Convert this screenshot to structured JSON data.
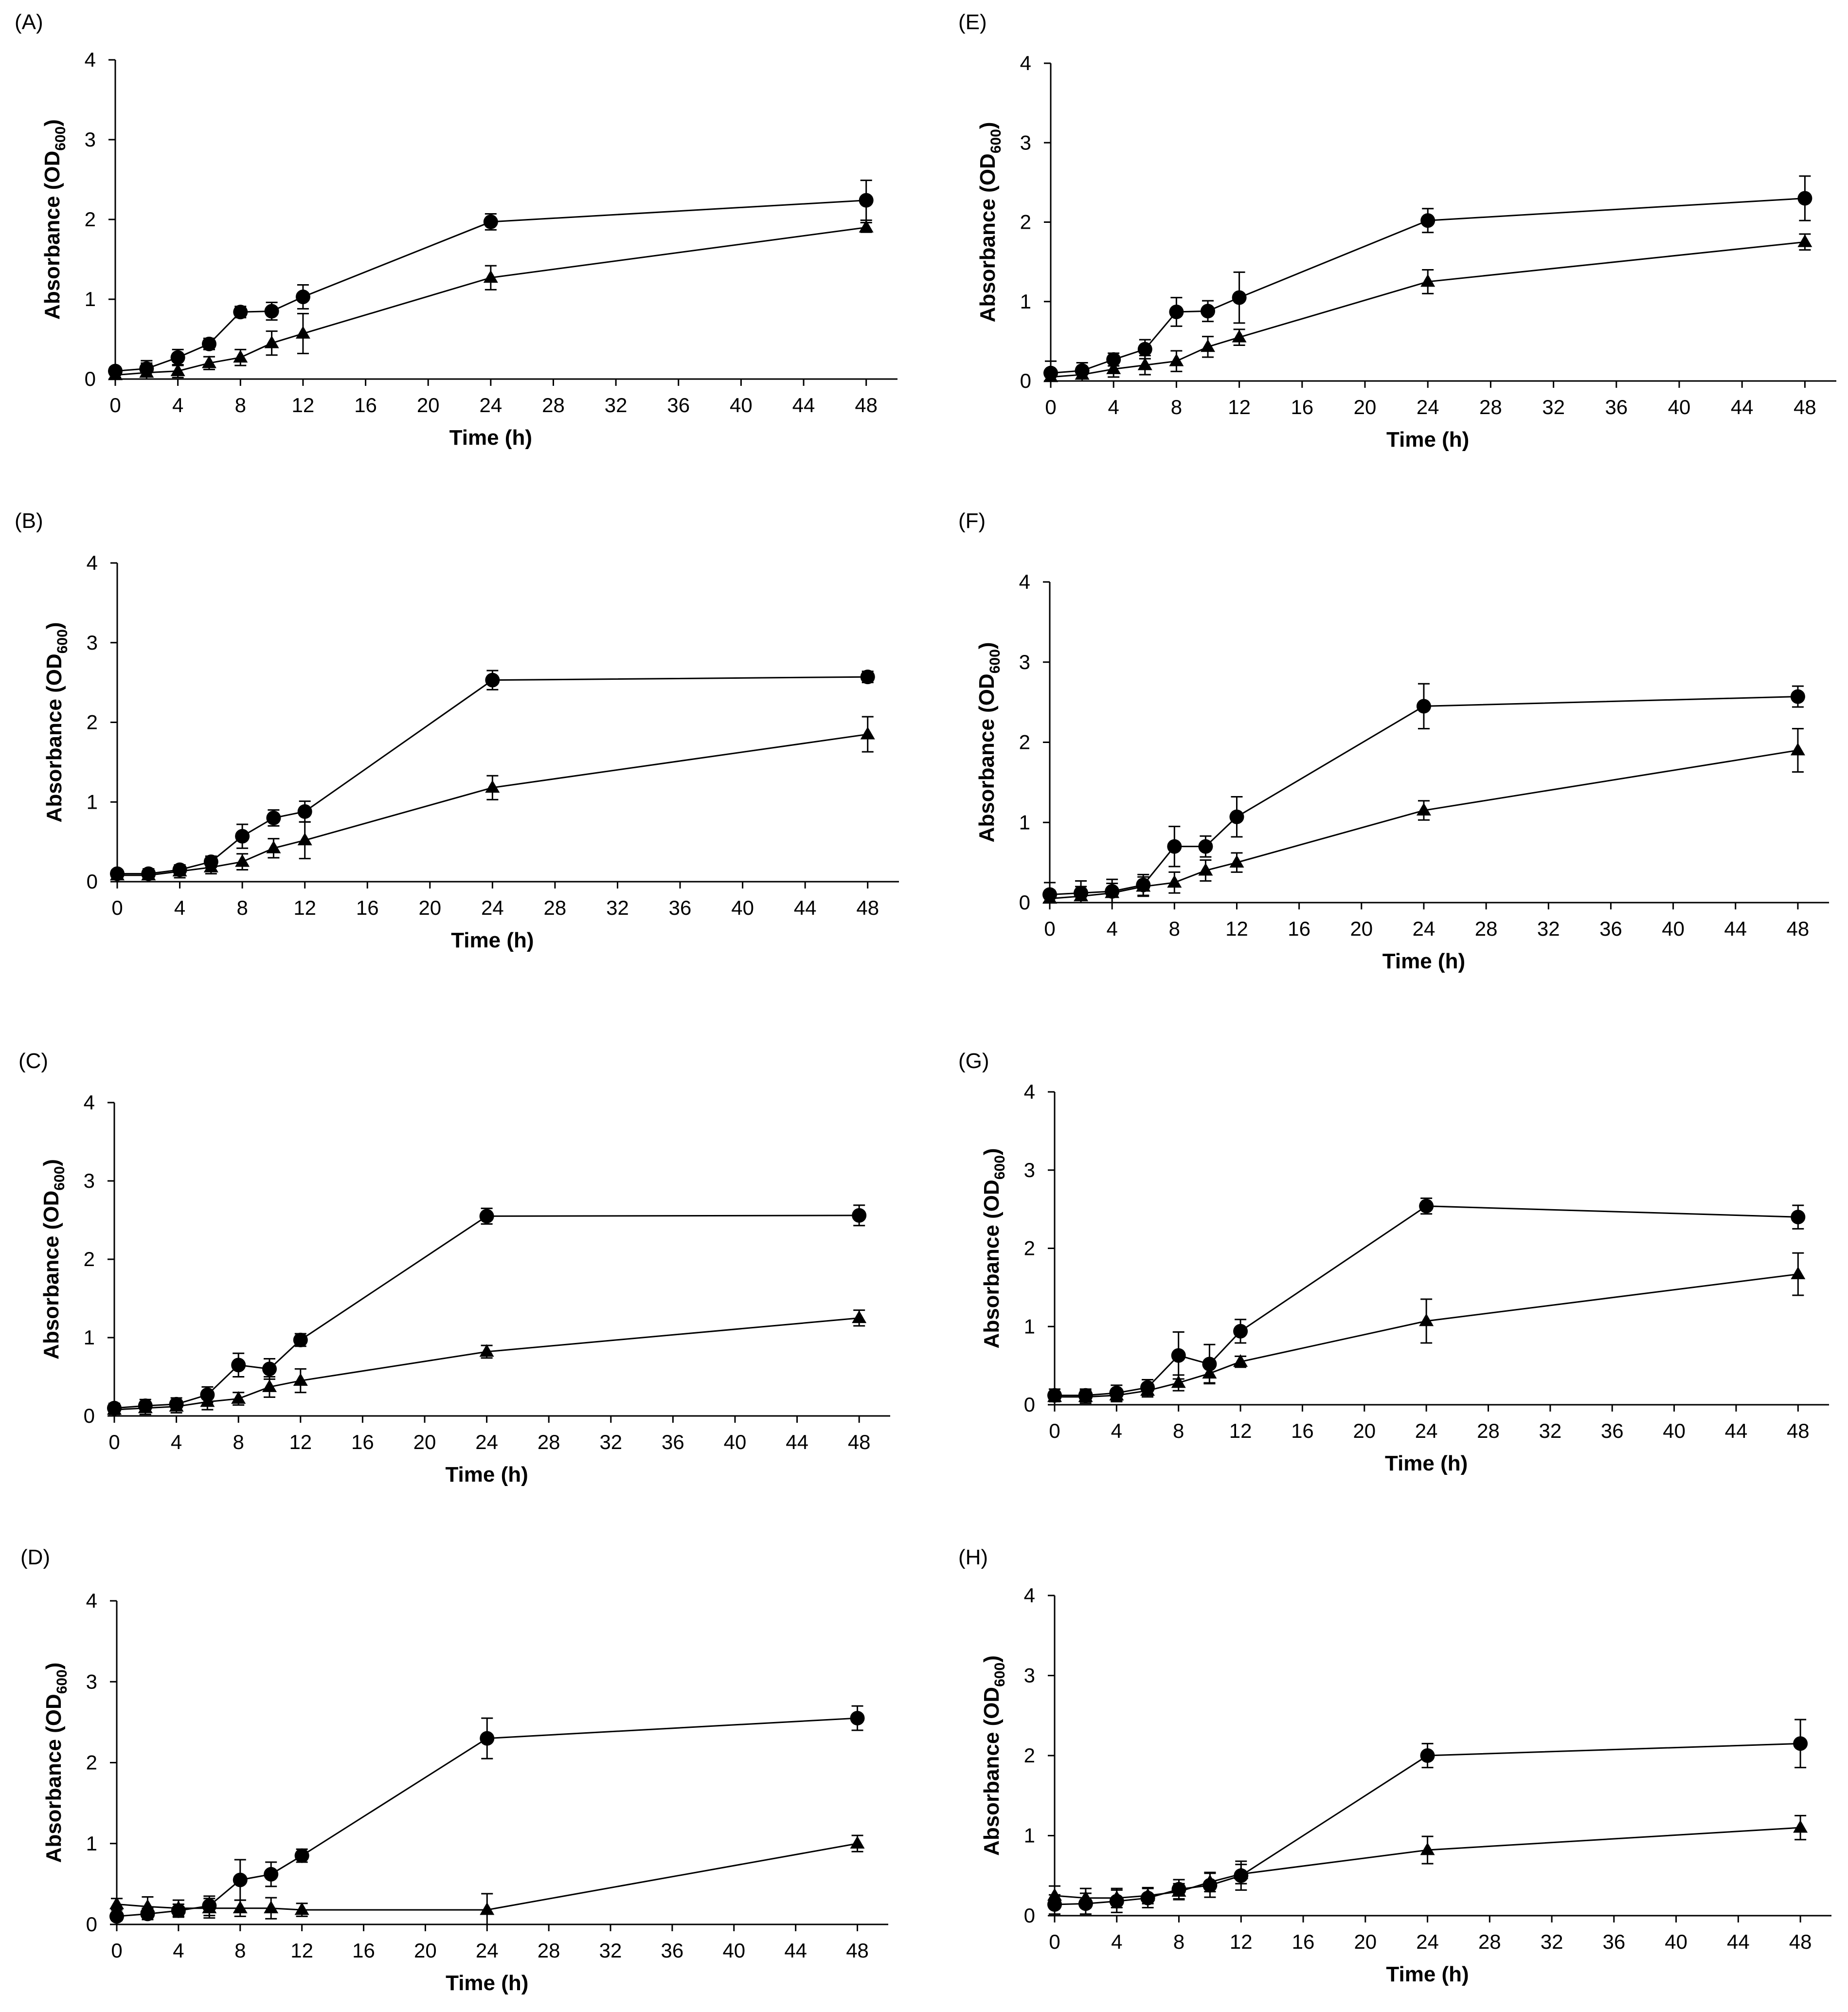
{
  "chart_data": [
    {
      "type": "line",
      "panel": "(A)",
      "x": [
        0,
        2,
        4,
        6,
        8,
        10,
        12,
        24,
        48
      ],
      "series": [
        {
          "marker": "circle",
          "values": [
            0.1,
            0.13,
            0.27,
            0.44,
            0.84,
            0.85,
            1.03,
            1.97,
            2.24
          ],
          "errors": [
            0.05,
            0.1,
            0.1,
            0.07,
            0.07,
            0.11,
            0.15,
            0.1,
            0.25
          ]
        },
        {
          "marker": "triangle",
          "values": [
            0.05,
            0.08,
            0.1,
            0.2,
            0.27,
            0.45,
            0.57,
            1.27,
            1.9
          ],
          "errors": [
            0.03,
            0.12,
            0.08,
            0.08,
            0.1,
            0.15,
            0.25,
            0.15,
            0.06
          ]
        }
      ],
      "xlabel": "Time (h)",
      "ylabel": "Absorbance (OD",
      "ylabel_sub": "600",
      "ylabel_end": ")",
      "xticks": [
        0,
        4,
        8,
        12,
        16,
        20,
        24,
        28,
        32,
        36,
        40,
        44,
        48
      ],
      "yticks": [
        0,
        1,
        2,
        3,
        4
      ],
      "xlim": [
        0,
        50
      ],
      "ylim": [
        0,
        4
      ],
      "grid": false
    },
    {
      "type": "line",
      "panel": "(B)",
      "x": [
        0,
        2,
        4,
        6,
        8,
        10,
        12,
        24,
        48
      ],
      "series": [
        {
          "marker": "circle",
          "values": [
            0.1,
            0.1,
            0.15,
            0.25,
            0.57,
            0.8,
            0.88,
            2.53,
            2.57
          ],
          "errors": [
            0.05,
            0.06,
            0.06,
            0.07,
            0.15,
            0.1,
            0.13,
            0.12,
            0.07
          ]
        },
        {
          "marker": "triangle",
          "values": [
            0.08,
            0.08,
            0.13,
            0.18,
            0.25,
            0.42,
            0.52,
            1.18,
            1.85
          ],
          "errors": [
            0.05,
            0.08,
            0.08,
            0.08,
            0.1,
            0.12,
            0.23,
            0.15,
            0.22
          ]
        }
      ],
      "xlabel": "Time (h)",
      "ylabel": "Absorbance (OD",
      "ylabel_sub": "600",
      "ylabel_end": ")",
      "xticks": [
        0,
        4,
        8,
        12,
        16,
        20,
        24,
        28,
        32,
        36,
        40,
        44,
        48
      ],
      "yticks": [
        0,
        1,
        2,
        3,
        4
      ],
      "xlim": [
        0,
        50
      ],
      "ylim": [
        0,
        4
      ],
      "grid": false
    },
    {
      "type": "line",
      "panel": "(C)",
      "x": [
        0,
        2,
        4,
        6,
        8,
        10,
        12,
        24,
        48
      ],
      "series": [
        {
          "marker": "circle",
          "values": [
            0.1,
            0.13,
            0.15,
            0.27,
            0.65,
            0.6,
            0.97,
            2.55,
            2.56
          ],
          "errors": [
            0.06,
            0.08,
            0.08,
            0.1,
            0.15,
            0.13,
            0.08,
            0.1,
            0.13
          ]
        },
        {
          "marker": "triangle",
          "values": [
            0.08,
            0.1,
            0.12,
            0.18,
            0.22,
            0.37,
            0.45,
            0.82,
            1.25
          ],
          "errors": [
            0.06,
            0.08,
            0.08,
            0.1,
            0.08,
            0.13,
            0.15,
            0.08,
            0.1
          ]
        }
      ],
      "xlabel": "Time (h)",
      "ylabel": "Absorbance (OD",
      "ylabel_sub": "600",
      "ylabel_end": ")",
      "xticks": [
        0,
        4,
        8,
        12,
        16,
        20,
        24,
        28,
        32,
        36,
        40,
        44,
        48
      ],
      "yticks": [
        0,
        1,
        2,
        3,
        4
      ],
      "xlim": [
        0,
        50
      ],
      "ylim": [
        0,
        4
      ],
      "grid": false
    },
    {
      "type": "line",
      "panel": "(D)",
      "x": [
        0,
        2,
        4,
        6,
        8,
        10,
        12,
        24,
        48
      ],
      "series": [
        {
          "marker": "circle",
          "values": [
            0.1,
            0.13,
            0.17,
            0.23,
            0.55,
            0.62,
            0.85,
            2.3,
            2.55
          ],
          "errors": [
            0.05,
            0.07,
            0.08,
            0.12,
            0.25,
            0.15,
            0.08,
            0.25,
            0.15
          ]
        },
        {
          "marker": "triangle",
          "values": [
            0.25,
            0.22,
            0.2,
            0.2,
            0.2,
            0.2,
            0.18,
            0.18,
            1.0
          ],
          "errors": [
            0.07,
            0.12,
            0.1,
            0.12,
            0.1,
            0.13,
            0.08,
            0.2,
            0.1
          ]
        }
      ],
      "xlabel": "Time (h)",
      "ylabel": "Absorbance (OD",
      "ylabel_sub": "600",
      "ylabel_end": ")",
      "xticks": [
        0,
        4,
        8,
        12,
        16,
        20,
        24,
        28,
        32,
        36,
        40,
        44,
        48
      ],
      "yticks": [
        0,
        1,
        2,
        3,
        4
      ],
      "xlim": [
        0,
        50
      ],
      "ylim": [
        0,
        4
      ],
      "grid": false
    },
    {
      "type": "line",
      "panel": "(E)",
      "x": [
        0,
        2,
        4,
        6,
        8,
        10,
        12,
        24,
        48
      ],
      "series": [
        {
          "marker": "circle",
          "values": [
            0.1,
            0.13,
            0.27,
            0.4,
            0.87,
            0.88,
            1.05,
            2.02,
            2.3
          ],
          "errors": [
            0.15,
            0.1,
            0.08,
            0.12,
            0.18,
            0.13,
            0.32,
            0.15,
            0.28
          ]
        },
        {
          "marker": "triangle",
          "values": [
            0.05,
            0.08,
            0.15,
            0.2,
            0.25,
            0.43,
            0.55,
            1.25,
            1.75
          ],
          "errors": [
            0.05,
            0.08,
            0.1,
            0.12,
            0.13,
            0.13,
            0.1,
            0.15,
            0.1
          ]
        }
      ],
      "xlabel": "Time (h)",
      "ylabel": "Absorbance (OD",
      "ylabel_sub": "600",
      "ylabel_end": ")",
      "xticks": [
        0,
        4,
        8,
        12,
        16,
        20,
        24,
        28,
        32,
        36,
        40,
        44,
        48
      ],
      "yticks": [
        0,
        1,
        2,
        3,
        4
      ],
      "xlim": [
        0,
        50
      ],
      "ylim": [
        0,
        4
      ],
      "grid": false
    },
    {
      "type": "line",
      "panel": "(F)",
      "x": [
        0,
        2,
        4,
        6,
        8,
        10,
        12,
        24,
        48
      ],
      "series": [
        {
          "marker": "circle",
          "values": [
            0.1,
            0.12,
            0.14,
            0.22,
            0.7,
            0.7,
            1.07,
            2.45,
            2.57
          ],
          "errors": [
            0.15,
            0.15,
            0.15,
            0.13,
            0.25,
            0.13,
            0.25,
            0.28,
            0.13
          ]
        },
        {
          "marker": "triangle",
          "values": [
            0.05,
            0.08,
            0.12,
            0.2,
            0.25,
            0.4,
            0.5,
            1.15,
            1.9
          ],
          "errors": [
            0.1,
            0.12,
            0.12,
            0.12,
            0.13,
            0.13,
            0.12,
            0.12,
            0.27
          ]
        }
      ],
      "xlabel": "Time (h)",
      "ylabel": "Absorbance (OD",
      "ylabel_sub": "600",
      "ylabel_end": ")",
      "xticks": [
        0,
        4,
        8,
        12,
        16,
        20,
        24,
        28,
        32,
        36,
        40,
        44,
        48
      ],
      "yticks": [
        0,
        1,
        2,
        3,
        4
      ],
      "xlim": [
        0,
        50
      ],
      "ylim": [
        0,
        4
      ],
      "grid": false
    },
    {
      "type": "line",
      "panel": "(G)",
      "x": [
        0,
        2,
        4,
        6,
        8,
        10,
        12,
        24,
        48
      ],
      "series": [
        {
          "marker": "circle",
          "values": [
            0.12,
            0.12,
            0.15,
            0.22,
            0.63,
            0.52,
            0.94,
            2.54,
            2.4
          ],
          "errors": [
            0.08,
            0.08,
            0.1,
            0.1,
            0.3,
            0.25,
            0.15,
            0.1,
            0.15
          ]
        },
        {
          "marker": "triangle",
          "values": [
            0.1,
            0.1,
            0.12,
            0.18,
            0.28,
            0.4,
            0.55,
            1.07,
            1.67
          ],
          "errors": [
            0.05,
            0.08,
            0.08,
            0.08,
            0.1,
            0.12,
            0.07,
            0.28,
            0.27
          ]
        }
      ],
      "xlabel": "Time (h)",
      "ylabel": "Absorbance (OD",
      "ylabel_sub": "600",
      "ylabel_end": ")",
      "xticks": [
        0,
        4,
        8,
        12,
        16,
        20,
        24,
        28,
        32,
        36,
        40,
        44,
        48
      ],
      "yticks": [
        0,
        1,
        2,
        3,
        4
      ],
      "xlim": [
        0,
        50
      ],
      "ylim": [
        0,
        4
      ],
      "grid": false
    },
    {
      "type": "line",
      "panel": "(H)",
      "x": [
        0,
        2,
        4,
        6,
        8,
        10,
        12,
        24,
        48
      ],
      "series": [
        {
          "marker": "circle",
          "values": [
            0.14,
            0.15,
            0.18,
            0.22,
            0.33,
            0.38,
            0.5,
            2.0,
            2.15
          ],
          "errors": [
            0.12,
            0.13,
            0.14,
            0.12,
            0.12,
            0.15,
            0.18,
            0.15,
            0.3
          ]
        },
        {
          "marker": "triangle",
          "values": [
            0.25,
            0.22,
            0.22,
            0.25,
            0.3,
            0.42,
            0.52,
            0.82,
            1.1
          ],
          "errors": [
            0.12,
            0.12,
            0.12,
            0.1,
            0.1,
            0.12,
            0.12,
            0.17,
            0.15
          ]
        }
      ],
      "xlabel": "Time (h)",
      "ylabel": "Absorbance (OD",
      "ylabel_sub": "600",
      "ylabel_end": ")",
      "xticks": [
        0,
        4,
        8,
        12,
        16,
        20,
        24,
        28,
        32,
        36,
        40,
        44,
        48
      ],
      "yticks": [
        0,
        1,
        2,
        3,
        4
      ],
      "xlim": [
        0,
        50
      ],
      "ylim": [
        0,
        4
      ],
      "grid": false
    }
  ]
}
